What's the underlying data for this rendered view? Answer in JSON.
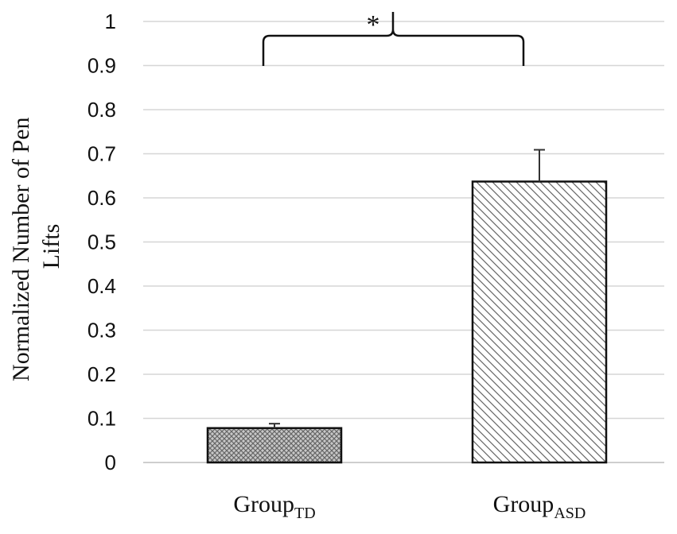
{
  "chart_data": {
    "type": "bar",
    "ylabel_lines": [
      "Normalized Number of Pen",
      "Lifts"
    ],
    "ylim": [
      0,
      1
    ],
    "ytick_step": 0.1,
    "grid": true,
    "categories": [
      {
        "base": "Group",
        "sub": "TD"
      },
      {
        "base": "Group",
        "sub": "ASD"
      }
    ],
    "values": [
      0.078,
      0.637
    ],
    "errors": [
      0.01,
      0.072
    ],
    "patterns": [
      "crosshatch",
      "diagonal"
    ],
    "significance": {
      "label": "*",
      "between": [
        0,
        1
      ]
    }
  }
}
